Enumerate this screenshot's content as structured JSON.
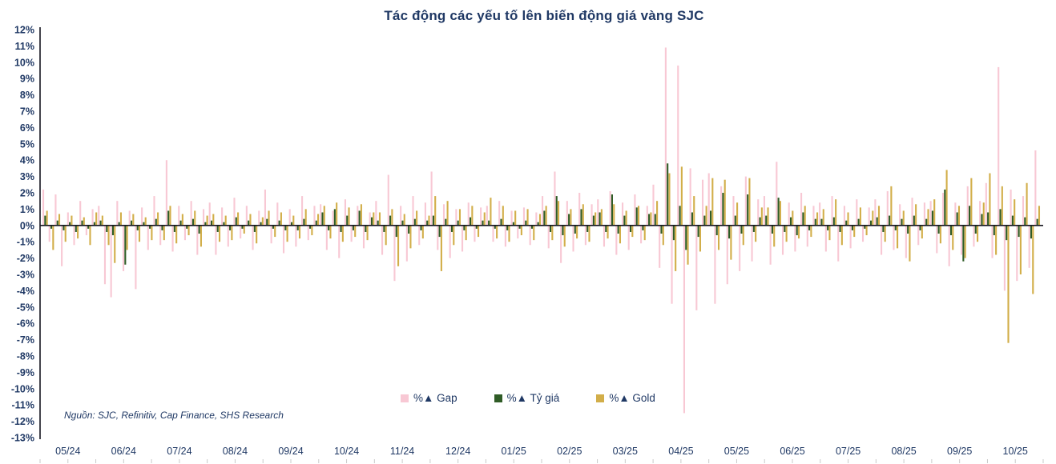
{
  "title": "Tác động các yếu tố lên biến động giá vàng SJC",
  "source_note": "Nguồn: SJC, Refinitiv, Cap Finance, SHS Research",
  "colors": {
    "text_navy": "#1f3864",
    "axis_line": "#15151f",
    "bottom_ticks": "#c9c9c9",
    "gap_pink": "#f8c8d4",
    "fx_green": "#2f5c26",
    "gold_yellow": "#d2ae49"
  },
  "chart_data": {
    "type": "bar",
    "title": "Tác động các yếu tố lên biến động giá vàng SJC",
    "xlabel": "",
    "ylabel": "",
    "ylim": [
      -13,
      12
    ],
    "grid": false,
    "legend_position": "bottom-center",
    "yticks": [
      12,
      11,
      10,
      9,
      8,
      7,
      6,
      5,
      4,
      3,
      2,
      1,
      0,
      -1,
      -2,
      -3,
      -4,
      -5,
      -6,
      -7,
      -8,
      -9,
      -10,
      -11,
      -12,
      -13
    ],
    "categories_months": [
      "05/24",
      "06/24",
      "07/24",
      "08/24",
      "09/24",
      "10/24",
      "11/24",
      "12/24",
      "01/25",
      "02/25",
      "03/25",
      "04/25",
      "05/25",
      "06/25",
      "07/25",
      "08/25",
      "09/25",
      "10/25"
    ],
    "series": [
      {
        "name": "%▲ Gap",
        "color": "#f8c8d4",
        "values": [
          2.2,
          -1.0,
          1.9,
          -2.5,
          0.8,
          -1.2,
          1.5,
          -0.6,
          1.0,
          1.2,
          -3.6,
          -4.4,
          1.5,
          -2.8,
          0.9,
          -3.9,
          1.1,
          -1.5,
          1.8,
          -1.2,
          4.0,
          -1.6,
          1.2,
          -0.9,
          1.5,
          -1.8,
          1.0,
          1.4,
          -1.8,
          1.1,
          -1.3,
          1.7,
          -0.8,
          1.2,
          -1.5,
          0.9,
          2.2,
          -1.1,
          1.4,
          -1.7,
          1.0,
          -1.3,
          1.8,
          -0.9,
          1.2,
          1.3,
          -1.5,
          0.9,
          -2.0,
          1.6,
          -1.0,
          1.2,
          -1.4,
          0.8,
          1.5,
          -1.8,
          3.1,
          -3.4,
          1.2,
          -2.2,
          1.8,
          -1.2,
          1.4,
          3.3,
          -1.5,
          1.3,
          -2.0,
          1.0,
          -1.6,
          1.4,
          -1.0,
          1.1,
          1.2,
          -1.0,
          1.5,
          -1.3,
          0.9,
          -0.8,
          1.1,
          -1.2,
          0.8,
          1.8,
          -1.4,
          3.3,
          -2.3,
          1.5,
          -1.6,
          2.0,
          -1.2,
          1.3,
          1.6,
          -1.3,
          2.1,
          -1.8,
          1.4,
          -1.5,
          1.9,
          -1.1,
          1.2,
          2.5,
          -2.6,
          10.9,
          -4.8,
          9.8,
          -11.5,
          3.5,
          -5.2,
          2.8,
          3.2,
          -4.8,
          2.4,
          -3.6,
          1.8,
          -2.8,
          3.0,
          -2.2,
          1.6,
          1.8,
          -2.4,
          3.9,
          -1.8,
          1.4,
          -1.6,
          2.0,
          -1.3,
          1.2,
          1.4,
          -1.6,
          1.8,
          -2.2,
          1.2,
          -1.4,
          1.6,
          -1.0,
          1.1,
          1.6,
          -1.8,
          2.1,
          -1.5,
          1.3,
          -2.0,
          1.7,
          -1.2,
          1.4,
          1.5,
          -1.7,
          2.0,
          -2.5,
          1.4,
          -1.8,
          2.4,
          -1.3,
          1.5,
          2.6,
          -2.0,
          9.7,
          -4.0,
          2.2,
          -3.4,
          1.8,
          -2.6,
          4.6
        ]
      },
      {
        "name": "%▲ Tỷ giá",
        "color": "#2f5c26",
        "values": [
          0.6,
          -0.2,
          0.3,
          -0.3,
          0.2,
          -0.4,
          0.3,
          -0.2,
          0.2,
          0.3,
          -0.4,
          -0.6,
          0.2,
          -2.4,
          0.3,
          -0.3,
          0.2,
          -0.2,
          0.4,
          -0.3,
          0.9,
          -0.4,
          0.3,
          -0.2,
          0.4,
          -0.5,
          0.2,
          0.3,
          -0.4,
          0.2,
          -0.3,
          0.5,
          -0.2,
          0.3,
          -0.4,
          0.2,
          0.4,
          -0.2,
          0.3,
          -0.3,
          0.2,
          -0.3,
          0.4,
          -0.2,
          0.3,
          0.8,
          -0.3,
          1.0,
          -0.4,
          0.6,
          -0.3,
          0.9,
          -0.4,
          0.5,
          0.3,
          -0.4,
          0.6,
          -0.7,
          0.3,
          -0.5,
          0.4,
          -0.3,
          0.3,
          0.6,
          -0.7,
          0.4,
          -0.4,
          0.3,
          -0.3,
          0.5,
          -0.2,
          0.3,
          0.3,
          -0.2,
          0.4,
          -0.3,
          0.2,
          -0.2,
          0.3,
          -0.2,
          0.2,
          0.9,
          -0.4,
          1.8,
          -0.6,
          0.7,
          -0.5,
          1.0,
          -0.4,
          0.6,
          0.8,
          -0.4,
          1.9,
          -0.5,
          0.6,
          -0.4,
          1.1,
          -0.3,
          0.7,
          0.7,
          -0.5,
          3.8,
          -0.9,
          1.2,
          -1.5,
          0.8,
          -0.7,
          0.6,
          0.9,
          -0.6,
          2.0,
          -0.8,
          0.6,
          -0.5,
          1.9,
          -0.4,
          0.5,
          0.6,
          -0.5,
          1.7,
          -0.4,
          0.5,
          -0.6,
          0.8,
          -0.3,
          0.4,
          0.4,
          -0.3,
          0.5,
          -0.4,
          0.3,
          -0.3,
          0.4,
          -0.2,
          0.3,
          0.5,
          -0.4,
          0.6,
          -0.3,
          0.4,
          -0.5,
          0.6,
          -0.3,
          0.4,
          0.9,
          -0.5,
          2.2,
          -0.6,
          0.8,
          -2.2,
          1.2,
          -0.5,
          0.7,
          0.8,
          -0.6,
          1.0,
          -0.9,
          0.6,
          -0.7,
          0.5,
          -0.8,
          0.4
        ]
      },
      {
        "name": "%▲ Gold",
        "color": "#d2ae49",
        "values": [
          0.9,
          -1.5,
          0.7,
          -1.0,
          0.6,
          -0.8,
          0.5,
          -1.2,
          0.8,
          0.6,
          -1.2,
          -2.3,
          0.8,
          -1.5,
          0.7,
          -1.0,
          0.5,
          -0.9,
          0.8,
          -0.9,
          1.2,
          -1.1,
          0.7,
          -0.6,
          0.9,
          -1.3,
          0.6,
          0.7,
          -1.0,
          0.6,
          -0.9,
          0.8,
          -0.5,
          0.7,
          -1.1,
          0.5,
          0.9,
          -0.7,
          0.8,
          -1.0,
          0.6,
          -0.8,
          1.0,
          -0.6,
          0.7,
          1.2,
          -0.8,
          1.4,
          -1.0,
          1.1,
          -0.7,
          1.3,
          -0.9,
          0.8,
          0.8,
          -1.2,
          1.0,
          -2.5,
          0.7,
          -1.4,
          0.9,
          -0.8,
          0.6,
          1.8,
          -2.8,
          1.5,
          -1.2,
          1.0,
          -0.9,
          1.2,
          -0.7,
          0.8,
          1.7,
          -0.8,
          1.2,
          -1.0,
          0.9,
          -0.6,
          1.0,
          -0.9,
          0.7,
          1.2,
          -0.9,
          1.5,
          -1.3,
          1.0,
          -0.8,
          1.3,
          -1.0,
          0.8,
          1.0,
          -0.8,
          1.3,
          -1.1,
          0.9,
          -0.7,
          1.2,
          -0.9,
          0.8,
          1.5,
          -1.2,
          3.2,
          -2.8,
          3.6,
          -2.4,
          1.8,
          -1.6,
          1.2,
          2.9,
          -1.5,
          2.8,
          -2.1,
          1.4,
          -1.2,
          2.9,
          -1.0,
          1.1,
          1.1,
          -1.3,
          1.5,
          -1.0,
          0.9,
          -0.8,
          1.2,
          -0.7,
          0.8,
          1.0,
          -0.9,
          1.6,
          -1.2,
          0.8,
          -0.7,
          1.1,
          -0.6,
          0.9,
          1.2,
          -1.0,
          2.4,
          -1.4,
          0.9,
          -2.2,
          1.3,
          -0.8,
          1.0,
          1.6,
          -1.1,
          3.4,
          -1.5,
          1.2,
          -2.0,
          2.9,
          -1.0,
          1.4,
          3.2,
          -1.8,
          2.4,
          -7.2,
          1.6,
          -3.0,
          2.6,
          -4.2,
          1.2
        ]
      }
    ]
  }
}
